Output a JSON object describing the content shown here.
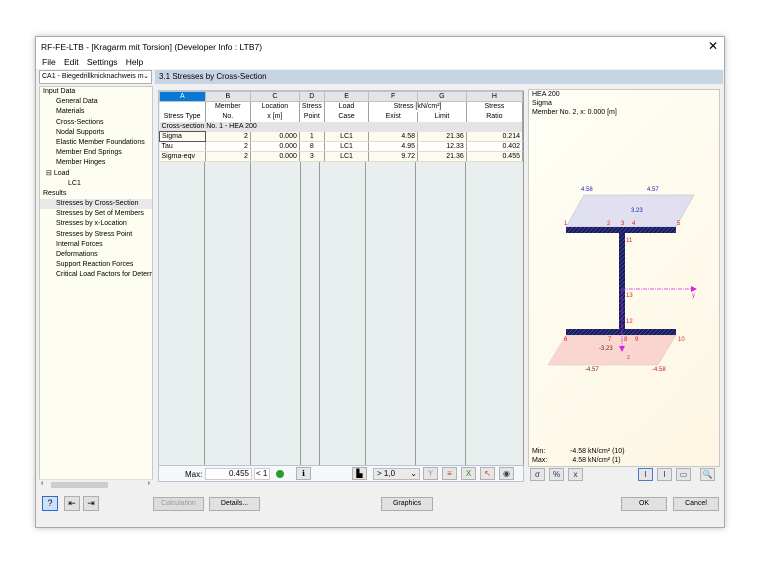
{
  "window": {
    "title": "RF-FE-LTB - [Kragarm mit Torsion] (Developer Info : LTB7)",
    "close": "✕"
  },
  "menu": [
    "File",
    "Edit",
    "Settings",
    "Help"
  ],
  "case_combo": {
    "value": "CA1 - Biegedrillknicknachweis m"
  },
  "tree": {
    "input_data": "Input Data",
    "input_items": [
      "General Data",
      "Materials",
      "Cross-Sections",
      "Nodal Supports",
      "Elastic Member Foundations",
      "Member End Springs",
      "Member Hinges"
    ],
    "load": "Load",
    "lc": "LC1",
    "results": "Results",
    "result_items": [
      "Stresses by Cross-Section",
      "Stresses by Set of Members",
      "Stresses by x-Location",
      "Stresses by Stress Point",
      "Internal Forces",
      "Deformations",
      "Support Reaction Forces",
      "Critical Load Factors for Determ"
    ]
  },
  "panel_title": "3.1 Stresses by Cross-Section",
  "table": {
    "letters": [
      "A",
      "B",
      "C",
      "D",
      "E",
      "F",
      "G",
      "H"
    ],
    "head1": [
      "",
      "Member",
      "Location",
      "Stress",
      "Load",
      "Stress [kN/cm²]",
      "",
      "Stress"
    ],
    "head2": [
      "Stress Type",
      "No.",
      "x [m]",
      "Point",
      "Case",
      "Exist",
      "Limit",
      "Ratio"
    ],
    "group": "Cross-section No. 1 - HEA 200",
    "rows": [
      [
        "Sigma",
        "2",
        "0.000",
        "1",
        "LC1",
        "4.58",
        "21.36",
        "0.214"
      ],
      [
        "Tau",
        "2",
        "0.000",
        "8",
        "LC1",
        "4.95",
        "12.33",
        "0.402"
      ],
      [
        "Sigma-eqv",
        "2",
        "0.000",
        "3",
        "LC1",
        "9.72",
        "21.36",
        "0.455"
      ]
    ],
    "max_label": "Max:",
    "max_value": "0.455",
    "max_cond": "< 1",
    "filter": "> 1,0"
  },
  "graphic": {
    "section": "HEA 200",
    "type": "Sigma",
    "member": "Member No. 2, x: 0.000 [m]",
    "labels": {
      "top_left": "4.58",
      "top_right": "4.57",
      "top_mid": "3.23",
      "bot_left": "-4.57",
      "bot_right": "-4.58",
      "bot_mid": "-3.23",
      "y": "y",
      "z": "z"
    },
    "points": [
      "1",
      "2",
      "3",
      "4",
      "5",
      "6",
      "7",
      "8",
      "9",
      "10",
      "11",
      "12",
      "13"
    ],
    "min_label": "Min:",
    "min_value": "-4.58",
    "min_unit": "kN/cm²",
    "min_pt": "(10)",
    "max_label": "Max:",
    "max_value": "4.58",
    "max_unit": "kN/cm²",
    "max_pt": "(1)"
  },
  "buttons": {
    "calculation": "Calculation",
    "details": "Details...",
    "graphics": "Graphics",
    "ok": "OK",
    "cancel": "Cancel"
  }
}
